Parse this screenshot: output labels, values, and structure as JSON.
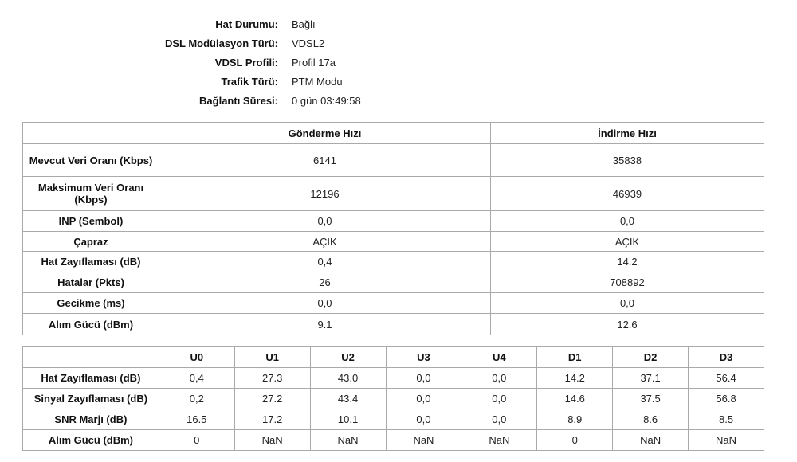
{
  "info": [
    {
      "label": "Hat Durumu:",
      "value": "Bağlı"
    },
    {
      "label": "DSL Modülasyon Türü:",
      "value": "VDSL2"
    },
    {
      "label": "VDSL Profili:",
      "value": "Profil 17a"
    },
    {
      "label": "Trafik Türü:",
      "value": "PTM Modu"
    },
    {
      "label": "Bağlantı Süresi:",
      "value": "0 gün 03:49:58"
    }
  ],
  "rate_table": {
    "headers": [
      "",
      "Gönderme Hızı",
      "İndirme Hızı"
    ],
    "rows": [
      {
        "label": "Mevcut Veri Oranı (Kbps)",
        "up": "6141",
        "down": "35838"
      },
      {
        "label": "Maksimum Veri Oranı (Kbps)",
        "up": "12196",
        "down": "46939"
      },
      {
        "label": "INP (Sembol)",
        "up": "0,0",
        "down": "0,0"
      },
      {
        "label": "Çapraz",
        "up": "AÇIK",
        "down": "AÇIK"
      },
      {
        "label": "Hat Zayıflaması (dB)",
        "up": "0,4",
        "down": "14.2"
      },
      {
        "label": "Hatalar (Pkts)",
        "up": "26",
        "down": "708892"
      },
      {
        "label": "Gecikme (ms)",
        "up": "0,0",
        "down": "0,0"
      },
      {
        "label": "Alım Gücü (dBm)",
        "up": "9.1",
        "down": "12.6"
      }
    ]
  },
  "band_table": {
    "headers": [
      "",
      "U0",
      "U1",
      "U2",
      "U3",
      "U4",
      "D1",
      "D2",
      "D3"
    ],
    "rows": [
      {
        "label": "Hat Zayıflaması (dB)",
        "values": [
          "0,4",
          "27.3",
          "43.0",
          "0,0",
          "0,0",
          "14.2",
          "37.1",
          "56.4"
        ]
      },
      {
        "label": "Sinyal Zayıflaması (dB)",
        "values": [
          "0,2",
          "27.2",
          "43.4",
          "0,0",
          "0,0",
          "14.6",
          "37.5",
          "56.8"
        ]
      },
      {
        "label": "SNR Marjı (dB)",
        "values": [
          "16.5",
          "17.2",
          "10.1",
          "0,0",
          "0,0",
          "8.9",
          "8.6",
          "8.5"
        ]
      },
      {
        "label": "Alım Gücü (dBm)",
        "values": [
          "0",
          "NaN",
          "NaN",
          "NaN",
          "NaN",
          "0",
          "NaN",
          "NaN"
        ]
      }
    ]
  }
}
